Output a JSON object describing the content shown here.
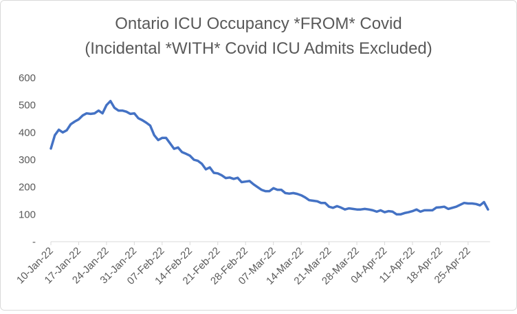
{
  "chart_data": {
    "type": "line",
    "title": [
      "Ontario ICU Occupancy *FROM* Covid",
      "(Incidental *WITH* Covid ICU Admits Excluded)"
    ],
    "x": [
      "10-Jan-22",
      "11-Jan-22",
      "12-Jan-22",
      "13-Jan-22",
      "14-Jan-22",
      "15-Jan-22",
      "16-Jan-22",
      "17-Jan-22",
      "18-Jan-22",
      "19-Jan-22",
      "20-Jan-22",
      "21-Jan-22",
      "22-Jan-22",
      "23-Jan-22",
      "24-Jan-22",
      "25-Jan-22",
      "26-Jan-22",
      "27-Jan-22",
      "28-Jan-22",
      "29-Jan-22",
      "30-Jan-22",
      "31-Jan-22",
      "01-Feb-22",
      "02-Feb-22",
      "03-Feb-22",
      "04-Feb-22",
      "05-Feb-22",
      "06-Feb-22",
      "07-Feb-22",
      "08-Feb-22",
      "09-Feb-22",
      "10-Feb-22",
      "11-Feb-22",
      "12-Feb-22",
      "13-Feb-22",
      "14-Feb-22",
      "15-Feb-22",
      "16-Feb-22",
      "17-Feb-22",
      "18-Feb-22",
      "19-Feb-22",
      "20-Feb-22",
      "21-Feb-22",
      "22-Feb-22",
      "23-Feb-22",
      "24-Feb-22",
      "25-Feb-22",
      "26-Feb-22",
      "27-Feb-22",
      "28-Feb-22",
      "01-Mar-22",
      "02-Mar-22",
      "03-Mar-22",
      "04-Mar-22",
      "05-Mar-22",
      "06-Mar-22",
      "07-Mar-22",
      "08-Mar-22",
      "09-Mar-22",
      "10-Mar-22",
      "11-Mar-22",
      "12-Mar-22",
      "13-Mar-22",
      "14-Mar-22",
      "15-Mar-22",
      "16-Mar-22",
      "17-Mar-22",
      "18-Mar-22",
      "19-Mar-22",
      "20-Mar-22",
      "21-Mar-22",
      "22-Mar-22",
      "23-Mar-22",
      "24-Mar-22",
      "25-Mar-22",
      "26-Mar-22",
      "27-Mar-22",
      "28-Mar-22",
      "29-Mar-22",
      "30-Mar-22",
      "31-Mar-22",
      "01-Apr-22",
      "02-Apr-22",
      "03-Apr-22",
      "04-Apr-22",
      "05-Apr-22",
      "06-Apr-22",
      "07-Apr-22",
      "08-Apr-22",
      "09-Apr-22",
      "10-Apr-22",
      "11-Apr-22",
      "12-Apr-22",
      "13-Apr-22",
      "14-Apr-22",
      "15-Apr-22",
      "16-Apr-22",
      "17-Apr-22",
      "18-Apr-22",
      "19-Apr-22",
      "20-Apr-22",
      "21-Apr-22",
      "22-Apr-22",
      "23-Apr-22",
      "24-Apr-22",
      "25-Apr-22",
      "26-Apr-22",
      "27-Apr-22",
      "28-Apr-22",
      "29-Apr-22",
      "30-Apr-22"
    ],
    "values": [
      341,
      390,
      410,
      400,
      408,
      430,
      440,
      448,
      462,
      470,
      468,
      470,
      480,
      470,
      500,
      515,
      490,
      480,
      480,
      476,
      468,
      470,
      452,
      445,
      436,
      425,
      390,
      372,
      380,
      380,
      360,
      340,
      345,
      328,
      322,
      315,
      300,
      296,
      285,
      265,
      272,
      252,
      250,
      243,
      233,
      235,
      230,
      234,
      218,
      220,
      222,
      210,
      200,
      190,
      185,
      185,
      196,
      190,
      190,
      178,
      176,
      178,
      175,
      170,
      162,
      152,
      150,
      148,
      142,
      142,
      128,
      124,
      130,
      125,
      118,
      122,
      120,
      118,
      118,
      120,
      118,
      115,
      110,
      115,
      108,
      112,
      110,
      100,
      100,
      105,
      108,
      112,
      118,
      110,
      115,
      115,
      115,
      125,
      126,
      128,
      120,
      124,
      128,
      135,
      142,
      140,
      140,
      138,
      133,
      145,
      118
    ],
    "color": "#4472c4",
    "ylim": [
      0,
      600
    ],
    "yticks": [
      {
        "value": 0,
        "label": "-"
      },
      100,
      200,
      300,
      400,
      500,
      600
    ]
  }
}
